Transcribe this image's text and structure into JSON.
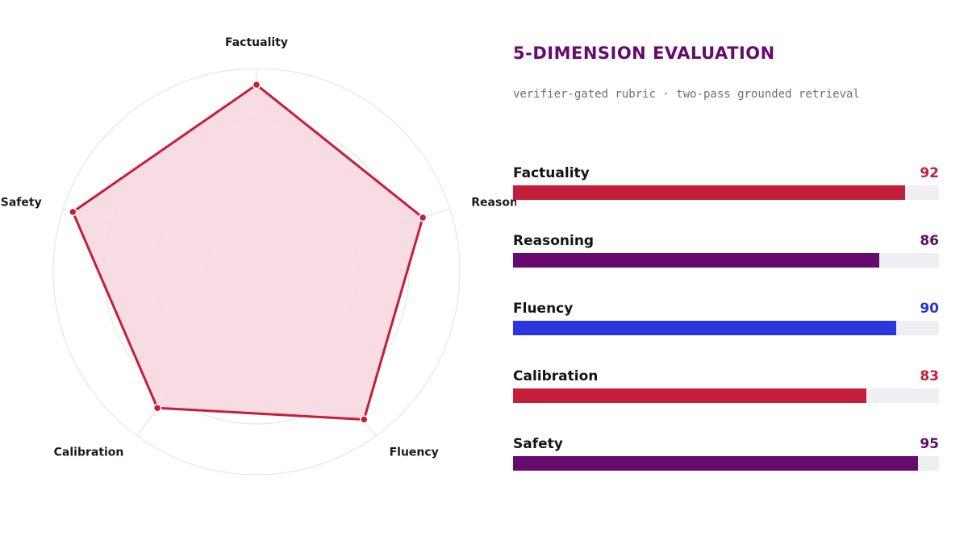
{
  "header": {
    "title": "5-DIMENSION EVALUATION",
    "subtitle": "verifier-gated rubric · two-pass grounded retrieval"
  },
  "chart_data": {
    "type": "radar",
    "categories": [
      "Factuality",
      "Reasoning",
      "Fluency",
      "Calibration",
      "Safety"
    ],
    "values": [
      92,
      86,
      90,
      83,
      95
    ],
    "range": [
      0,
      100
    ],
    "grid": true,
    "colors": {
      "series_stroke": "#c41e3a",
      "series_fill": "#f6d9e0",
      "grid": "#e6e6ea"
    }
  },
  "metrics": [
    {
      "label": "Factuality",
      "value": 92,
      "color": "#c41e3a"
    },
    {
      "label": "Reasoning",
      "value": 86,
      "color": "#660a6e"
    },
    {
      "label": "Fluency",
      "value": 90,
      "color": "#2b35e0"
    },
    {
      "label": "Calibration",
      "value": 83,
      "color": "#c41e3a"
    },
    {
      "label": "Safety",
      "value": 95,
      "color": "#660a6e"
    }
  ]
}
